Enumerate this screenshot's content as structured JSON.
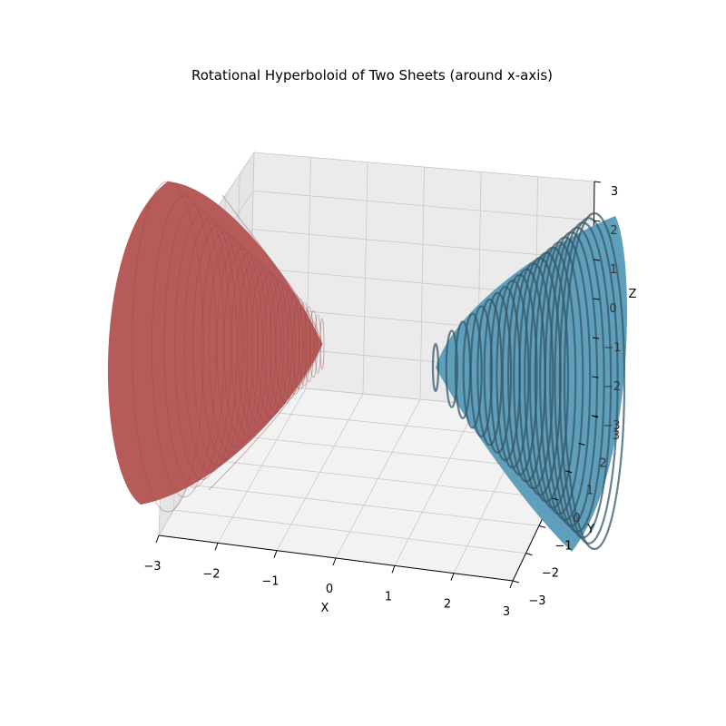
{
  "chart_data": {
    "type": "surface3d",
    "title": "Rotational Hyperboloid of Two Sheets (around x-axis)",
    "xlabel": "X",
    "ylabel": "Y",
    "zlabel": "Z",
    "xlim": [
      -3,
      3
    ],
    "ylim": [
      -3,
      3
    ],
    "zlim": [
      -3,
      3
    ],
    "x_ticks": [
      "−3",
      "−2",
      "−1",
      "0",
      "1",
      "2",
      "3"
    ],
    "y_ticks": [
      "−3",
      "−2",
      "−1",
      "0",
      "1",
      "2",
      "3"
    ],
    "z_ticks": [
      "−3",
      "−2",
      "−1",
      "0",
      "1",
      "2",
      "3"
    ],
    "grid": true,
    "series": [
      {
        "color": "#b65a5a",
        "x_range": [
          -3,
          -1
        ],
        "vertex": [
          -1,
          0,
          0
        ]
      },
      {
        "color": "#5f9fbb",
        "x_range": [
          1,
          3
        ],
        "vertex": [
          1,
          0,
          0
        ]
      }
    ]
  }
}
